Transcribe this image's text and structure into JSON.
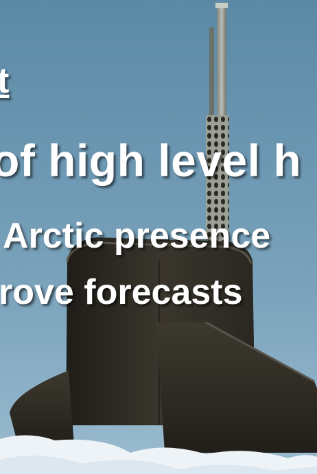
{
  "slide": {
    "title_fragment": "t",
    "headline": "of high level h",
    "line_2": "Arctic presence",
    "line_3": "rove forecasts"
  },
  "photo": {
    "subject": "submarine-sail-surfaced-through-arctic-ice",
    "colors": {
      "sky_top": "#5b89a6",
      "sky_bottom": "#8fb3c8",
      "hull": "#2f2c25",
      "ice": "#eef3f7"
    }
  }
}
